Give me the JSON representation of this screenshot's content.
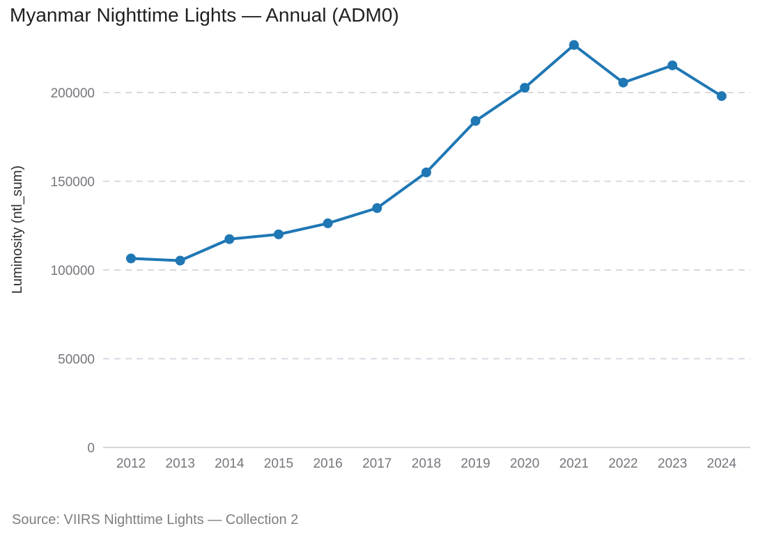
{
  "chart_data": {
    "type": "line",
    "title": "Myanmar Nighttime Lights — Annual (ADM0)",
    "ylabel": "Luminosity (ntl_sum)",
    "xlabel": "",
    "categories": [
      2012,
      2013,
      2014,
      2015,
      2016,
      2017,
      2018,
      2019,
      2020,
      2021,
      2022,
      2023,
      2024
    ],
    "values": [
      106500,
      105300,
      117400,
      120100,
      126300,
      134900,
      155000,
      184000,
      202700,
      226800,
      205600,
      215300,
      198000
    ],
    "yticks": [
      0,
      50000,
      100000,
      150000,
      200000
    ],
    "ylim": [
      0,
      235000
    ],
    "grid": "horizontal-dashed",
    "legend_position": "none",
    "line_color": "#1f77b4",
    "marker": "circle",
    "gridline_color": "#d6d9e0",
    "axisline_color": "#c9c9c9"
  },
  "footer": {
    "source": "Source: VIIRS Nighttime Lights — Collection 2"
  }
}
